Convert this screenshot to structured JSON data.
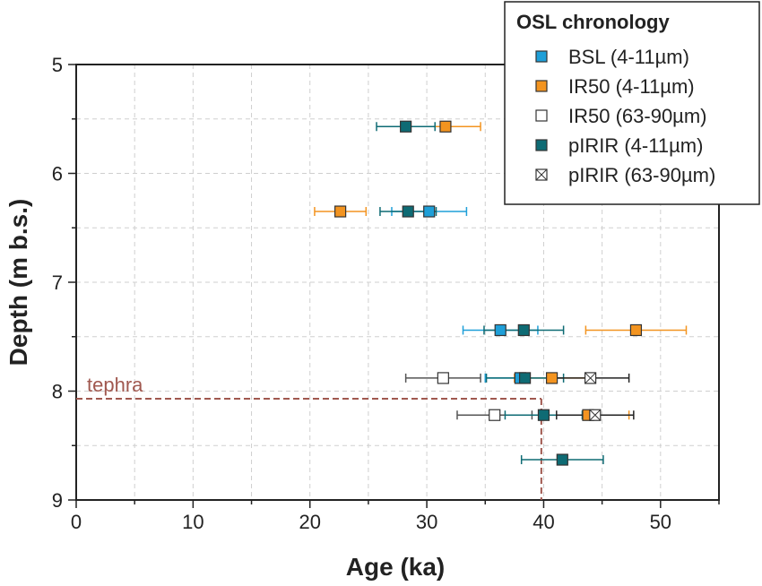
{
  "chart_data": {
    "type": "scatter",
    "title": "",
    "xlabel": "Age (ka)",
    "ylabel": "Depth (m b.s.)",
    "xlim": [
      0,
      55
    ],
    "ylim": [
      5,
      9
    ],
    "y_inverted": true,
    "xticks": [
      "0",
      "10",
      "20",
      "30",
      "40",
      "50"
    ],
    "yticks": [
      "5",
      "6",
      "7",
      "8",
      "9"
    ],
    "grid": true,
    "legend": {
      "title": "OSL chronology",
      "placement": "top-right"
    },
    "series": [
      {
        "name": "BSL (4-11µm)",
        "color": "#1e9fd8",
        "marker": "filled-square",
        "points": [
          {
            "x": 30.2,
            "y": 6.35,
            "xerr": 3.2
          },
          {
            "x": 36.3,
            "y": 7.44,
            "xerr": 3.2
          },
          {
            "x": 38.0,
            "y": 7.88,
            "xerr": 3.0
          }
        ]
      },
      {
        "name": "IR50 (4-11µm)",
        "color": "#f39420",
        "marker": "filled-square",
        "points": [
          {
            "x": 31.6,
            "y": 5.57,
            "xerr": 3.0
          },
          {
            "x": 22.6,
            "y": 6.35,
            "xerr": 2.2
          },
          {
            "x": 47.9,
            "y": 7.44,
            "xerr": 4.3
          },
          {
            "x": 40.7,
            "y": 7.88,
            "xerr": 3.2
          },
          {
            "x": 43.8,
            "y": 8.22,
            "xerr": 3.5
          }
        ]
      },
      {
        "name": "IR50 (63-90µm)",
        "color": "#ffffff",
        "marker": "open-square",
        "points": [
          {
            "x": 31.4,
            "y": 7.88,
            "xerr": 3.2
          },
          {
            "x": 35.8,
            "y": 8.22,
            "xerr": 3.2
          }
        ]
      },
      {
        "name": "pIRIR (4-11µm)",
        "color": "#0e6b74",
        "marker": "filled-square",
        "points": [
          {
            "x": 28.2,
            "y": 5.57,
            "xerr": 2.5
          },
          {
            "x": 28.4,
            "y": 6.35,
            "xerr": 2.4
          },
          {
            "x": 38.3,
            "y": 7.44,
            "xerr": 3.4
          },
          {
            "x": 38.4,
            "y": 7.88,
            "xerr": 3.3
          },
          {
            "x": 40.0,
            "y": 8.22,
            "xerr": 3.3
          },
          {
            "x": 41.6,
            "y": 8.63,
            "xerr": 3.5
          }
        ]
      },
      {
        "name": "pIRIR (63-90µm)",
        "color": "#ffffff",
        "marker": "crossed-square",
        "points": [
          {
            "x": 44.0,
            "y": 7.88,
            "xerr": 3.3
          },
          {
            "x": 44.4,
            "y": 8.22,
            "xerr": 3.3
          }
        ]
      }
    ],
    "annotations": [
      {
        "text": "tephra",
        "color": "#a0584f",
        "line_depth": 8.07,
        "line_age": 39.8
      }
    ]
  }
}
